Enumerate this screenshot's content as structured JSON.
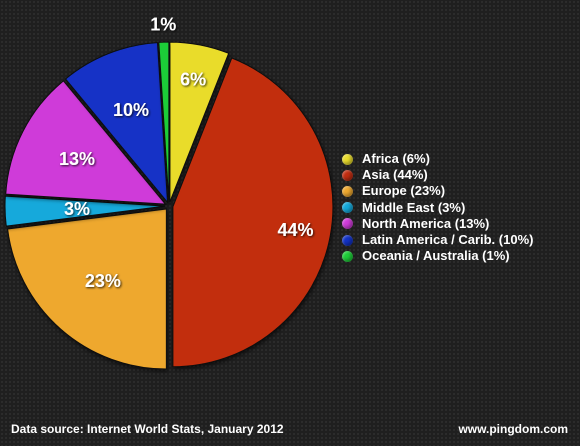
{
  "chart_data": {
    "type": "pie",
    "categories": [
      "Africa",
      "Asia",
      "Europe",
      "Middle East",
      "North America",
      "Latin America / Carib.",
      "Oceania / Australia"
    ],
    "values": [
      6,
      44,
      23,
      3,
      13,
      10,
      1
    ],
    "slice_labels": [
      "6%",
      "44%",
      "23%",
      "3%",
      "13%",
      "10%",
      "1%"
    ],
    "legend_entries": [
      "Africa (6%)",
      "Asia (44%)",
      "Europe (23%)",
      "Middle East (3%)",
      "North America (13%)",
      "Latin America / Carib. (10%)",
      "Oceania / Australia (1%)"
    ],
    "colors": [
      "#e9dc2c",
      "#c22d11",
      "#eea82f",
      "#13a9db",
      "#cf3bd9",
      "#1232c6",
      "#1dcd38"
    ],
    "legend_position": "right",
    "start_angle_deg": 0,
    "direction": "clockwise"
  },
  "footer": {
    "source": "Data source: Internet World Stats, January 2012",
    "site": "www.pingdom.com"
  }
}
